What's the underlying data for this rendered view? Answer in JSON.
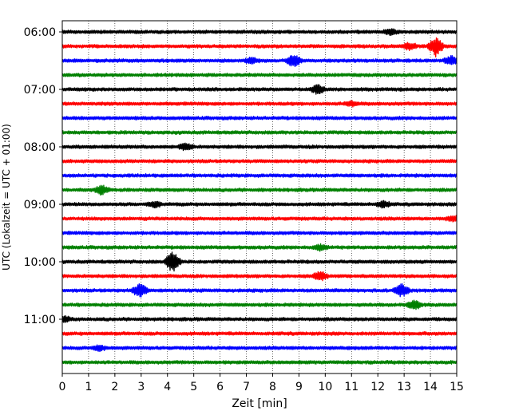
{
  "chart_data": {
    "type": "line",
    "title": "",
    "xlabel": "Zeit  [min]",
    "ylabel": "UTC (Lokalzeit = UTC + 01:00)",
    "xlim": [
      0,
      15
    ],
    "x_ticks": [
      "0",
      "1",
      "2",
      "3",
      "4",
      "5",
      "6",
      "7",
      "8",
      "9",
      "10",
      "11",
      "12",
      "13",
      "14",
      "15"
    ],
    "y_ticks": [
      "06:00",
      "07:00",
      "08:00",
      "09:00",
      "10:00",
      "11:00"
    ],
    "grid": "vertical dotted",
    "legend": "none",
    "trace_interval_minutes": 15,
    "start_time": "06:00",
    "trace_count": 24,
    "color_cycle": [
      "#000000",
      "#ff0000",
      "#0000ff",
      "#008000"
    ],
    "traces": [
      {
        "time": "06:00",
        "color": "#000000",
        "events": [
          {
            "t": 12.5,
            "amp": 0.3
          }
        ]
      },
      {
        "time": "06:15",
        "color": "#ff0000",
        "events": [
          {
            "t": 13.2,
            "amp": 0.4
          },
          {
            "t": 14.2,
            "amp": 1.1
          }
        ]
      },
      {
        "time": "06:30",
        "color": "#0000ff",
        "events": [
          {
            "t": 7.2,
            "amp": 0.3
          },
          {
            "t": 8.8,
            "amp": 0.7
          },
          {
            "t": 14.8,
            "amp": 0.5
          }
        ]
      },
      {
        "time": "06:45",
        "color": "#008000",
        "events": []
      },
      {
        "time": "07:00",
        "color": "#000000",
        "events": [
          {
            "t": 9.7,
            "amp": 0.5
          }
        ]
      },
      {
        "time": "07:15",
        "color": "#ff0000",
        "events": [
          {
            "t": 11.0,
            "amp": 0.25
          }
        ]
      },
      {
        "time": "07:30",
        "color": "#0000ff",
        "events": []
      },
      {
        "time": "07:45",
        "color": "#008000",
        "events": []
      },
      {
        "time": "08:00",
        "color": "#000000",
        "events": [
          {
            "t": 4.7,
            "amp": 0.4
          }
        ]
      },
      {
        "time": "08:15",
        "color": "#ff0000",
        "events": []
      },
      {
        "time": "08:30",
        "color": "#0000ff",
        "events": []
      },
      {
        "time": "08:45",
        "color": "#008000",
        "events": [
          {
            "t": 1.5,
            "amp": 0.5
          }
        ]
      },
      {
        "time": "09:00",
        "color": "#000000",
        "events": [
          {
            "t": 3.5,
            "amp": 0.3
          },
          {
            "t": 12.2,
            "amp": 0.35
          }
        ]
      },
      {
        "time": "09:15",
        "color": "#ff0000",
        "events": [
          {
            "t": 14.9,
            "amp": 0.3
          }
        ]
      },
      {
        "time": "09:30",
        "color": "#0000ff",
        "events": []
      },
      {
        "time": "09:45",
        "color": "#008000",
        "events": [
          {
            "t": 9.8,
            "amp": 0.3
          }
        ]
      },
      {
        "time": "10:00",
        "color": "#000000",
        "events": [
          {
            "t": 4.2,
            "amp": 1.2
          }
        ]
      },
      {
        "time": "10:15",
        "color": "#ff0000",
        "events": [
          {
            "t": 9.8,
            "amp": 0.5
          }
        ]
      },
      {
        "time": "10:30",
        "color": "#0000ff",
        "events": [
          {
            "t": 2.95,
            "amp": 0.8
          },
          {
            "t": 12.9,
            "amp": 0.7
          }
        ]
      },
      {
        "time": "10:45",
        "color": "#008000",
        "events": [
          {
            "t": 13.4,
            "amp": 0.5
          }
        ]
      },
      {
        "time": "11:00",
        "color": "#000000",
        "events": [
          {
            "t": 0.1,
            "amp": 0.3
          }
        ]
      },
      {
        "time": "11:15",
        "color": "#ff0000",
        "events": []
      },
      {
        "time": "11:30",
        "color": "#0000ff",
        "events": [
          {
            "t": 1.4,
            "amp": 0.3
          }
        ]
      },
      {
        "time": "11:45",
        "color": "#008000",
        "events": []
      }
    ]
  }
}
